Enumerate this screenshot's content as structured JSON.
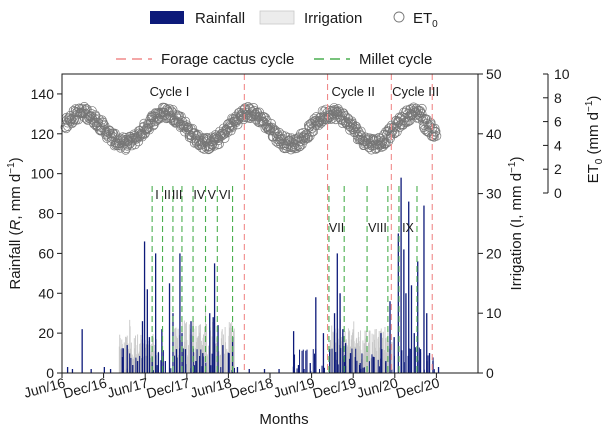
{
  "chart_data": {
    "type": "bar",
    "xlabel": "Months",
    "x_ticks": [
      "Jun/16",
      "Dec/16",
      "Jun/17",
      "Dec/17",
      "Jun/18",
      "Dec/18",
      "Jun/19",
      "Dec/19",
      "Jun/20",
      "Dec/20"
    ],
    "x_range_months": [
      0,
      60
    ],
    "axes": {
      "rainfall": {
        "label": "Rainfall (R, mm d⁻¹)",
        "label_parts": [
          "Rainfall (",
          "R",
          ", mm d",
          "−1",
          ")"
        ],
        "range": [
          0,
          150
        ],
        "ticks": [
          0,
          20,
          40,
          60,
          80,
          100,
          120,
          140
        ]
      },
      "irrigation": {
        "label": "Irrigation (I, mm d⁻¹)",
        "label_parts": [
          "Irrigation (I, mm d",
          "−1",
          ")"
        ],
        "range": [
          0,
          50
        ],
        "ticks": [
          0,
          10,
          20,
          30,
          40,
          50
        ]
      },
      "et0": {
        "label": "ET₀ (mm d⁻¹)",
        "label_parts": [
          "ET",
          "0",
          " (mm d",
          "−1",
          ")"
        ],
        "range": [
          0,
          10
        ],
        "ticks": [
          0,
          2,
          4,
          6,
          8,
          10
        ]
      }
    },
    "legend": {
      "rainfall": "Rainfall",
      "irrigation": "Irrigation",
      "et0_main": "ET",
      "et0_sub": "0",
      "forage": "Forage cactus cycle",
      "millet": "Millet cycle"
    },
    "colors": {
      "rainfall": "#0d1a7a",
      "irrigation": "#c8c8c8",
      "et0": "#777777",
      "forage": "#f08a8a",
      "millet": "#4caf50"
    },
    "cycle_labels": [
      {
        "text": "Cycle I",
        "x": 15.5,
        "y": 141
      },
      {
        "text": "Cycle II",
        "x": 42,
        "y": 141
      },
      {
        "text": "Cycle III",
        "x": 51,
        "y": 141
      }
    ],
    "forage_lines": [
      26.3,
      38.3,
      47.5,
      53.4
    ],
    "millet_lines": [
      13.0,
      14.5,
      16.0,
      17.3,
      18.9,
      20.7,
      22.4,
      24.6,
      38.5,
      40.7,
      44.0,
      47.0,
      48.6,
      51.2
    ],
    "millet_labels": [
      {
        "text": "I",
        "x": 13.7
      },
      {
        "text": "II",
        "x": 15.2
      },
      {
        "text": "III",
        "x": 16.6
      },
      {
        "text": "IV",
        "x": 19.8
      },
      {
        "text": "V",
        "x": 21.6
      },
      {
        "text": "VI",
        "x": 23.5
      },
      {
        "text": "VII",
        "x": 39.6
      },
      {
        "text": "VIII",
        "x": 45.5
      },
      {
        "text": "IX",
        "x": 49.9
      }
    ],
    "rainfall": [
      [
        0.8,
        3
      ],
      [
        1.5,
        2
      ],
      [
        2.9,
        22
      ],
      [
        4.2,
        2
      ],
      [
        6.1,
        3
      ],
      [
        7.0,
        2
      ],
      [
        8.7,
        8
      ],
      [
        9.4,
        14
      ],
      [
        10.2,
        4
      ],
      [
        10.9,
        6
      ],
      [
        11.6,
        26
      ],
      [
        11.9,
        66
      ],
      [
        12.3,
        42
      ],
      [
        12.6,
        18
      ],
      [
        13.0,
        8
      ],
      [
        13.5,
        60
      ],
      [
        13.9,
        10
      ],
      [
        14.4,
        22
      ],
      [
        14.9,
        6
      ],
      [
        15.5,
        45
      ],
      [
        16.0,
        30
      ],
      [
        16.5,
        12
      ],
      [
        17.0,
        60
      ],
      [
        17.3,
        20
      ],
      [
        17.8,
        12
      ],
      [
        18.6,
        26
      ],
      [
        19.3,
        6
      ],
      [
        20.3,
        10
      ],
      [
        21.3,
        30
      ],
      [
        21.8,
        28
      ],
      [
        22.0,
        55
      ],
      [
        22.5,
        24
      ],
      [
        23.2,
        14
      ],
      [
        24.1,
        10
      ],
      [
        24.6,
        18
      ],
      [
        25.3,
        3
      ],
      [
        27.0,
        2
      ],
      [
        29.2,
        2
      ],
      [
        31.3,
        2
      ],
      [
        33.4,
        21
      ],
      [
        34.1,
        4
      ],
      [
        34.9,
        2
      ],
      [
        35.8,
        5
      ],
      [
        36.6,
        38
      ],
      [
        37.7,
        20
      ],
      [
        38.6,
        12
      ],
      [
        39.3,
        30
      ],
      [
        39.7,
        60
      ],
      [
        40.1,
        40
      ],
      [
        40.5,
        22
      ],
      [
        40.9,
        15
      ],
      [
        41.6,
        10
      ],
      [
        42.3,
        8
      ],
      [
        43.0,
        5
      ],
      [
        45.0,
        8
      ],
      [
        46.0,
        20
      ],
      [
        46.7,
        6
      ],
      [
        47.3,
        36
      ],
      [
        47.9,
        18
      ],
      [
        48.5,
        70
      ],
      [
        48.9,
        98
      ],
      [
        49.3,
        62
      ],
      [
        49.6,
        40
      ],
      [
        50.0,
        86
      ],
      [
        50.4,
        44
      ],
      [
        50.8,
        20
      ],
      [
        51.3,
        56
      ],
      [
        51.7,
        12
      ],
      [
        52.2,
        84
      ],
      [
        52.6,
        30
      ],
      [
        53.0,
        10
      ],
      [
        53.5,
        6
      ],
      [
        54.3,
        3
      ]
    ],
    "irrigation_blocks": [
      {
        "start": 8.2,
        "end": 13.6,
        "mean": 5.2,
        "peak": 9.5
      },
      {
        "start": 16.2,
        "end": 24.8,
        "mean": 7.0,
        "peak": 11.5
      },
      {
        "start": 38.6,
        "end": 47.6,
        "mean": 6.0,
        "peak": 11.0
      }
    ],
    "et0_model": {
      "base": 5.45,
      "amplitude": 1.3,
      "period_months": 12,
      "peak_month": 3,
      "count": 700,
      "noise": 0.55
    }
  }
}
